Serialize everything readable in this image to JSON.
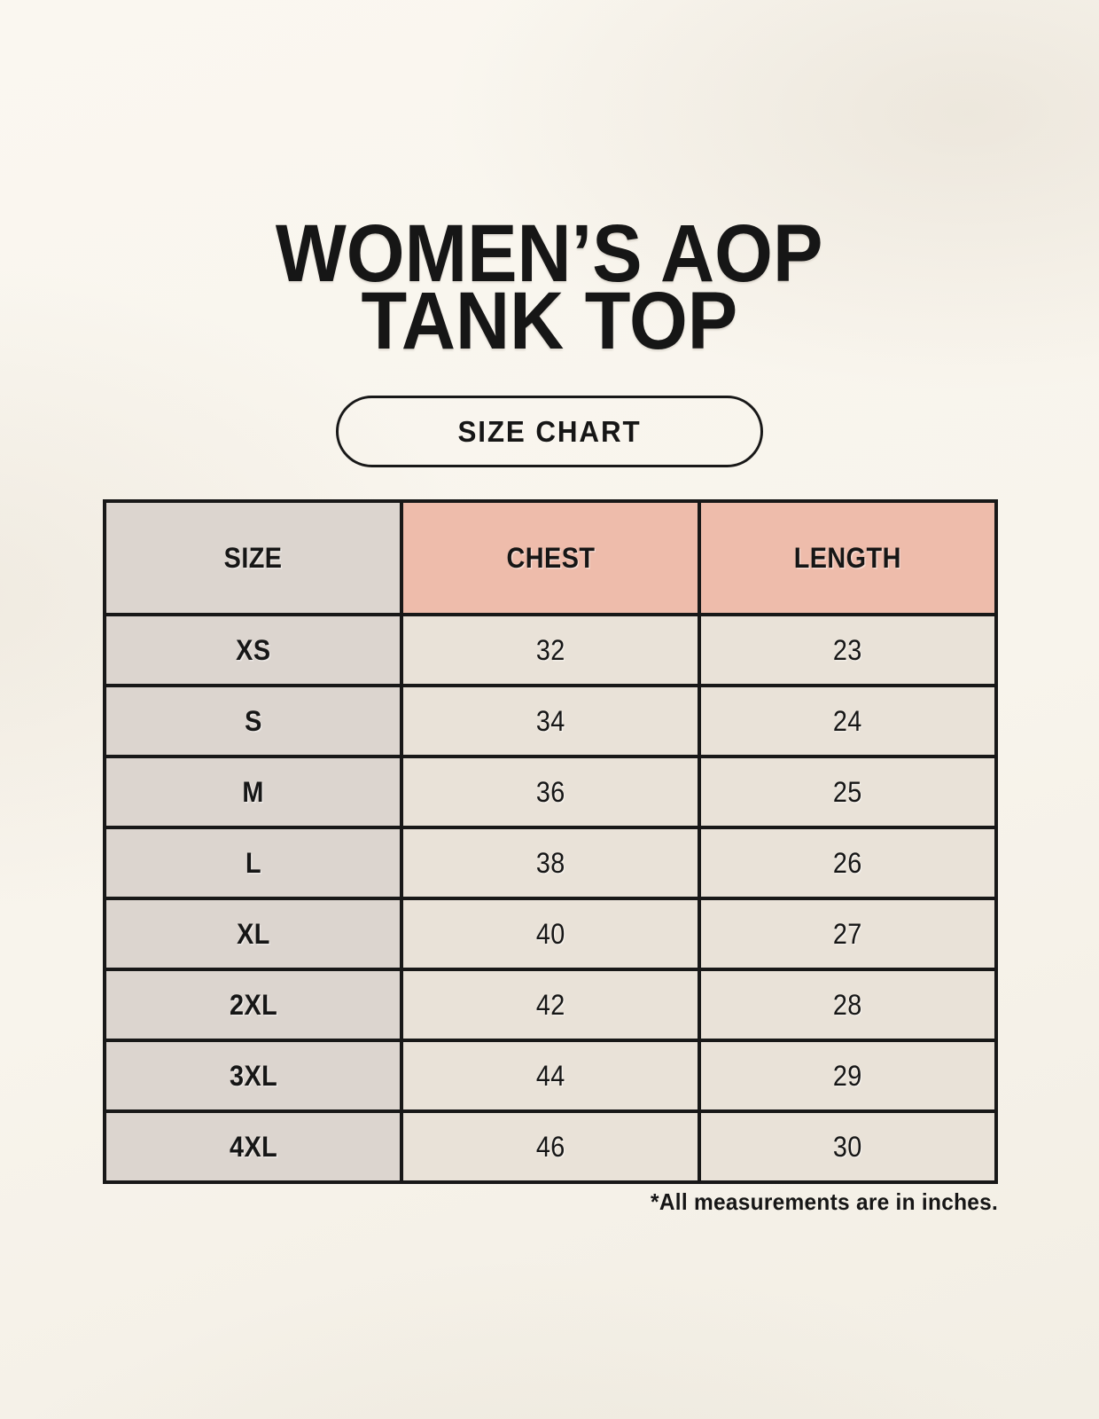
{
  "page": {
    "title_line1": "WOMEN’S AOP",
    "title_line2": "TANK TOP",
    "badge_label": "SIZE CHART",
    "footnote": "*All measurements are in inches."
  },
  "size_table": {
    "columns": [
      "SIZE",
      "CHEST",
      "LENGTH"
    ],
    "rows": [
      [
        "XS",
        "32",
        "23"
      ],
      [
        "S",
        "34",
        "24"
      ],
      [
        "M",
        "36",
        "25"
      ],
      [
        "L",
        "38",
        "26"
      ],
      [
        "XL",
        "40",
        "27"
      ],
      [
        "2XL",
        "42",
        "28"
      ],
      [
        "3XL",
        "44",
        "29"
      ],
      [
        "4XL",
        "46",
        "30"
      ]
    ]
  },
  "colors": {
    "page_background": "#f8f4ec",
    "accent_header_bg": "#eebcab",
    "size_cell_bg": "#dcd5cf",
    "value_cell_bg": "#e9e2d8",
    "table_border": "#181818",
    "text": "#161616"
  }
}
